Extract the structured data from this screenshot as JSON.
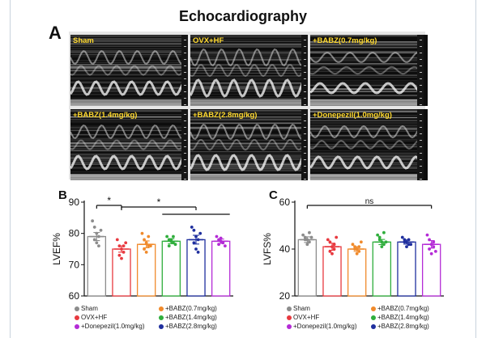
{
  "figure": {
    "title": "Echocardiography",
    "panel_a_letter": "A",
    "panel_b_letter": "B",
    "panel_c_letter": "C"
  },
  "echo_images": [
    {
      "label": "Sham"
    },
    {
      "label": "OVX+HF"
    },
    {
      "label": "+BABZ(0.7mg/kg)"
    },
    {
      "label": "+BABZ(1.4mg/kg)"
    },
    {
      "label": "+BABZ(2.8mg/kg)"
    },
    {
      "label": "+Donepezil(1.0mg/kg)"
    }
  ],
  "groups": [
    {
      "name": "Sham",
      "color": "#8c8c8c"
    },
    {
      "name": "OVX+HF",
      "color": "#e8393f"
    },
    {
      "name": "+BABZ(0.7mg/kg)",
      "color": "#f08a2b"
    },
    {
      "name": "+BABZ(1.4mg/kg)",
      "color": "#2fae3c"
    },
    {
      "name": "+BABZ(2.8mg/kg)",
      "color": "#1f2f9e"
    },
    {
      "name": "+Donepezil(1.0mg/kg)",
      "color": "#b42bd6"
    }
  ],
  "legend_order": [
    0,
    2,
    1,
    3,
    5,
    4
  ],
  "chart_data": [
    {
      "type": "bar",
      "ylabel": "LVEF%",
      "ylim": [
        60,
        90
      ],
      "yticks": [
        60,
        70,
        80,
        90
      ],
      "categories": [
        "Sham",
        "OVX+HF",
        "+BABZ(0.7mg/kg)",
        "+BABZ(1.4mg/kg)",
        "+BABZ(2.8mg/kg)",
        "+Donepezil(1.0mg/kg)"
      ],
      "values": [
        79,
        75,
        76.5,
        77.5,
        78,
        77.5
      ],
      "errors": [
        1.3,
        1.0,
        1.1,
        0.8,
        1.4,
        0.7
      ],
      "points": [
        [
          84,
          82,
          80,
          79,
          78,
          77,
          76,
          81
        ],
        [
          78,
          76,
          75,
          74,
          73,
          72,
          76,
          77
        ],
        [
          80,
          78,
          77,
          76,
          75,
          74,
          79,
          76
        ],
        [
          79,
          78,
          77.5,
          77,
          76,
          78,
          79,
          76.5
        ],
        [
          82,
          81,
          79,
          78,
          77,
          75,
          74,
          80
        ],
        [
          79,
          78,
          77.5,
          77,
          76.5,
          78.5,
          77,
          76
        ]
      ],
      "significance": [
        {
          "from": 0,
          "to": 1,
          "label": "*"
        },
        {
          "from": 1,
          "to": 4,
          "label": "*"
        }
      ],
      "extra_bracket": {
        "from": 3,
        "to": 5
      }
    },
    {
      "type": "bar",
      "ylabel": "LVFS%",
      "ylim": [
        20,
        60
      ],
      "yticks": [
        20,
        40,
        60
      ],
      "categories": [
        "Sham",
        "OVX+HF",
        "+BABZ(0.7mg/kg)",
        "+BABZ(1.4mg/kg)",
        "+BABZ(2.8mg/kg)",
        "+Donepezil(1.0mg/kg)"
      ],
      "values": [
        44,
        41,
        40,
        43,
        43,
        42
      ],
      "errors": [
        1.2,
        1.5,
        1.0,
        1.1,
        0.9,
        1.6
      ],
      "points": [
        [
          46,
          45,
          44,
          43,
          44,
          42,
          47,
          45
        ],
        [
          44,
          43,
          41,
          40,
          39,
          38,
          42,
          45
        ],
        [
          42,
          41,
          40,
          39,
          40,
          38,
          41,
          43
        ],
        [
          46,
          45,
          43,
          42,
          44,
          41,
          47,
          43
        ],
        [
          45,
          44,
          43,
          42,
          43,
          41,
          44,
          42
        ],
        [
          46,
          44,
          42,
          41,
          40,
          38,
          43,
          39
        ]
      ],
      "significance": [
        {
          "from": 0,
          "to": 5,
          "label": "ns"
        }
      ]
    }
  ]
}
